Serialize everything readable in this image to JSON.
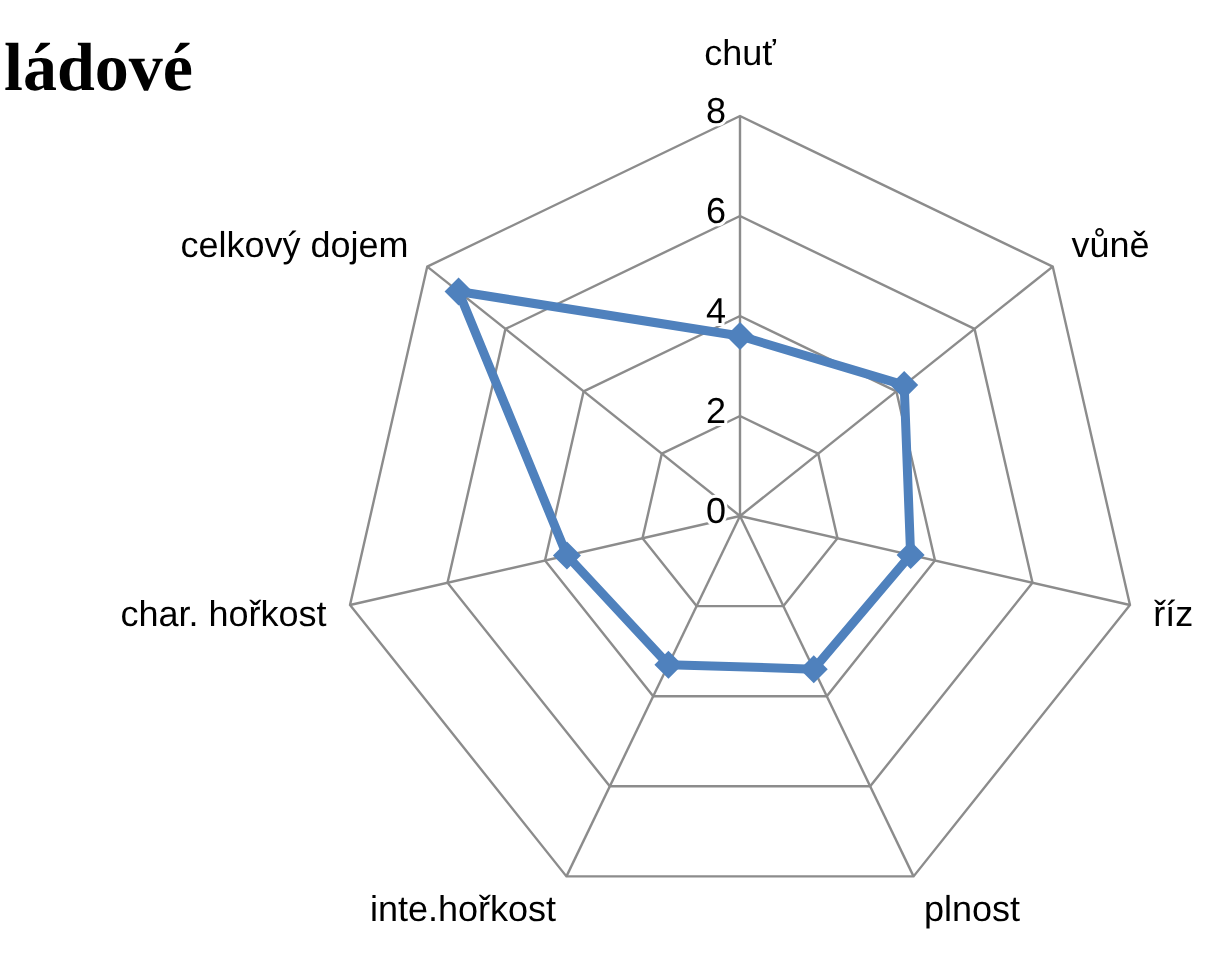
{
  "chart_data": {
    "type": "radar",
    "title": "ládové",
    "categories": [
      "chuť",
      "vůně",
      "říz",
      "plnost",
      "inte.hořkost",
      "char. hořkost",
      "celkový dojem"
    ],
    "series": [
      {
        "color": "#4f81bd",
        "values": [
          3.6,
          4.2,
          3.5,
          3.4,
          3.3,
          3.55,
          7.2
        ]
      }
    ],
    "ylim": [
      0,
      8
    ],
    "yticks": [
      0,
      2,
      4,
      6,
      8
    ],
    "grid": true,
    "marker": "diamond",
    "line_style": "solid"
  }
}
